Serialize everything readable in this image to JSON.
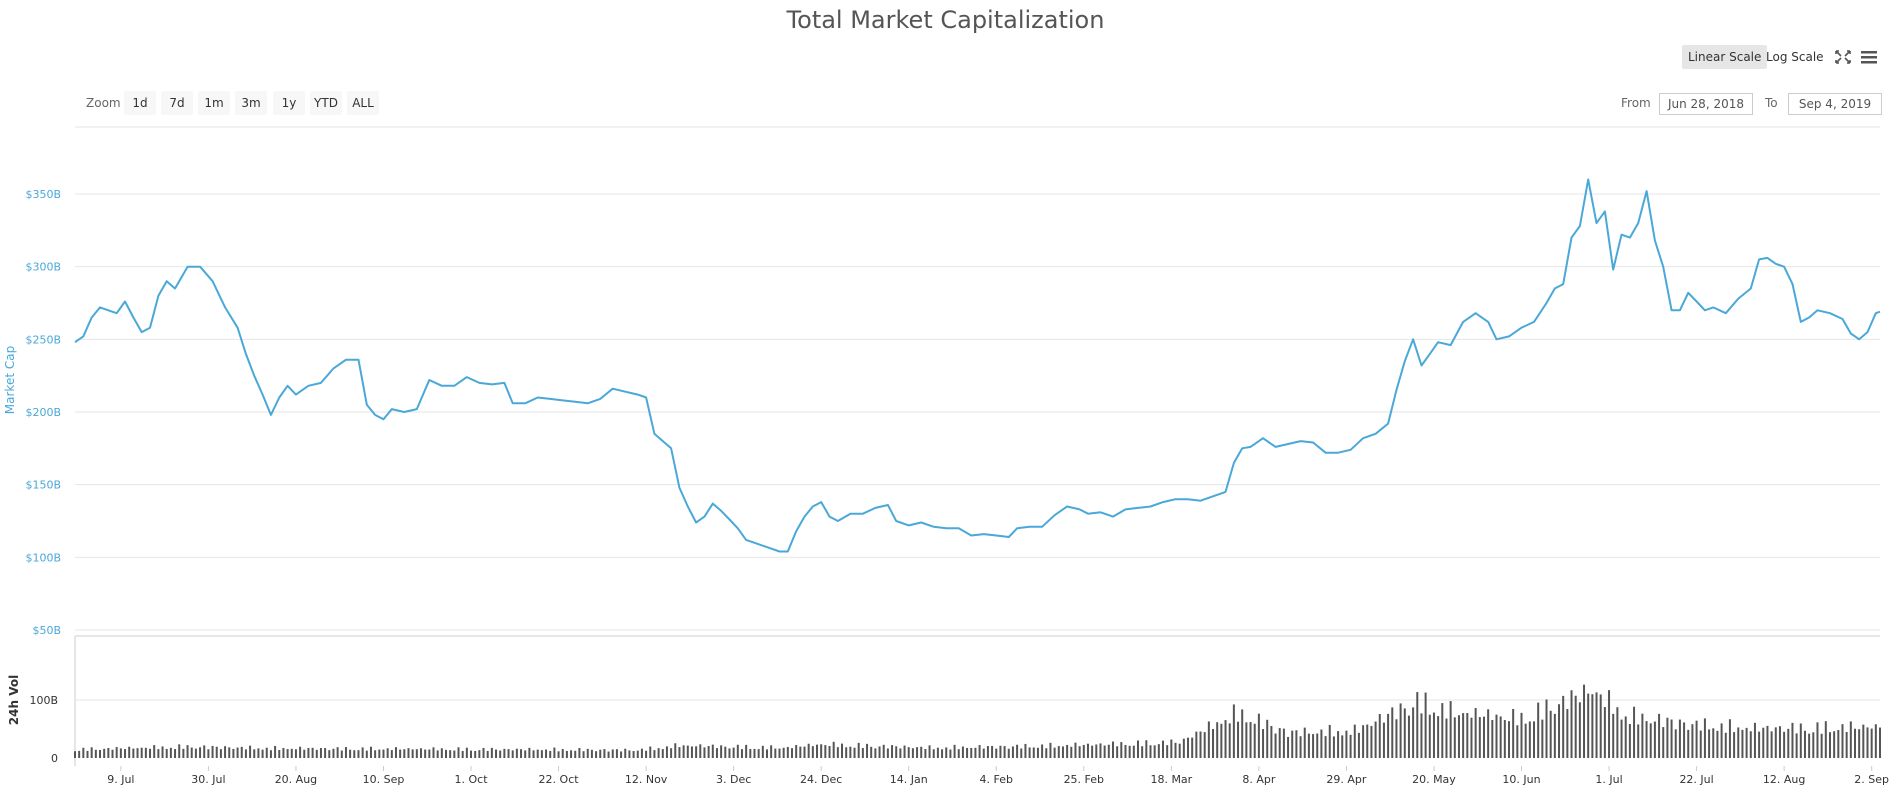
{
  "chart_data": {
    "type": "line",
    "title": "Total Market Capitalization",
    "range_selector": {
      "zoom_label": "Zoom",
      "buttons": [
        "1d",
        "7d",
        "1m",
        "3m",
        "1y",
        "YTD",
        "ALL"
      ],
      "from_label": "From",
      "from_date": "Jun 28, 2018",
      "to_label": "To",
      "to_date": "Sep 4, 2019"
    },
    "scale_buttons": [
      "Linear Scale",
      "Log Scale"
    ],
    "active_scale": "Linear Scale",
    "market_cap_axis": {
      "label": "Market Cap",
      "ticks": [
        {
          "value": 50,
          "label": "$50B"
        },
        {
          "value": 100,
          "label": "$100B"
        },
        {
          "value": 150,
          "label": "$150B"
        },
        {
          "value": 200,
          "label": "$200B"
        },
        {
          "value": 250,
          "label": "$250B"
        },
        {
          "value": 300,
          "label": "$300B"
        },
        {
          "value": 350,
          "label": "$350B"
        }
      ],
      "ylim": [
        50,
        400
      ]
    },
    "volume_axis": {
      "label": "24h Vol",
      "ticks": [
        {
          "value": 0,
          "label": "0"
        },
        {
          "value": 100,
          "label": "100B"
        }
      ],
      "ylim": [
        0,
        200
      ]
    },
    "xlim": [
      "2018-06-28",
      "2019-09-04"
    ],
    "x_ticks": [
      {
        "date": "2018-07-09",
        "label": "9. Jul"
      },
      {
        "date": "2018-07-30",
        "label": "30. Jul"
      },
      {
        "date": "2018-08-20",
        "label": "20. Aug"
      },
      {
        "date": "2018-09-10",
        "label": "10. Sep"
      },
      {
        "date": "2018-10-01",
        "label": "1. Oct"
      },
      {
        "date": "2018-10-22",
        "label": "22. Oct"
      },
      {
        "date": "2018-11-12",
        "label": "12. Nov"
      },
      {
        "date": "2018-12-03",
        "label": "3. Dec"
      },
      {
        "date": "2018-12-24",
        "label": "24. Dec"
      },
      {
        "date": "2019-01-14",
        "label": "14. Jan"
      },
      {
        "date": "2019-02-04",
        "label": "4. Feb"
      },
      {
        "date": "2019-02-25",
        "label": "25. Feb"
      },
      {
        "date": "2019-03-18",
        "label": "18. Mar"
      },
      {
        "date": "2019-04-08",
        "label": "8. Apr"
      },
      {
        "date": "2019-04-29",
        "label": "29. Apr"
      },
      {
        "date": "2019-05-20",
        "label": "20. May"
      },
      {
        "date": "2019-06-10",
        "label": "10. Jun"
      },
      {
        "date": "2019-07-01",
        "label": "1. Jul"
      },
      {
        "date": "2019-07-22",
        "label": "22. Jul"
      },
      {
        "date": "2019-08-12",
        "label": "12. Aug"
      },
      {
        "date": "2019-09-02",
        "label": "2. Sep"
      }
    ],
    "series": [
      {
        "name": "Market Cap",
        "color": "#4aa8d8",
        "points": [
          [
            "2018-06-28",
            248
          ],
          [
            "2018-06-30",
            252
          ],
          [
            "2018-07-02",
            265
          ],
          [
            "2018-07-04",
            272
          ],
          [
            "2018-07-06",
            270
          ],
          [
            "2018-07-08",
            268
          ],
          [
            "2018-07-10",
            276
          ],
          [
            "2018-07-12",
            265
          ],
          [
            "2018-07-14",
            255
          ],
          [
            "2018-07-16",
            258
          ],
          [
            "2018-07-18",
            280
          ],
          [
            "2018-07-20",
            290
          ],
          [
            "2018-07-22",
            285
          ],
          [
            "2018-07-25",
            300
          ],
          [
            "2018-07-28",
            300
          ],
          [
            "2018-07-31",
            290
          ],
          [
            "2018-08-03",
            272
          ],
          [
            "2018-08-06",
            258
          ],
          [
            "2018-08-08",
            240
          ],
          [
            "2018-08-10",
            225
          ],
          [
            "2018-08-12",
            212
          ],
          [
            "2018-08-14",
            198
          ],
          [
            "2018-08-16",
            210
          ],
          [
            "2018-08-18",
            218
          ],
          [
            "2018-08-20",
            212
          ],
          [
            "2018-08-23",
            218
          ],
          [
            "2018-08-26",
            220
          ],
          [
            "2018-08-29",
            230
          ],
          [
            "2018-09-01",
            236
          ],
          [
            "2018-09-04",
            236
          ],
          [
            "2018-09-06",
            205
          ],
          [
            "2018-09-08",
            198
          ],
          [
            "2018-09-10",
            195
          ],
          [
            "2018-09-12",
            202
          ],
          [
            "2018-09-15",
            200
          ],
          [
            "2018-09-18",
            202
          ],
          [
            "2018-09-21",
            222
          ],
          [
            "2018-09-24",
            218
          ],
          [
            "2018-09-27",
            218
          ],
          [
            "2018-09-30",
            224
          ],
          [
            "2018-10-03",
            220
          ],
          [
            "2018-10-06",
            219
          ],
          [
            "2018-10-09",
            220
          ],
          [
            "2018-10-11",
            206
          ],
          [
            "2018-10-14",
            206
          ],
          [
            "2018-10-17",
            210
          ],
          [
            "2018-10-20",
            209
          ],
          [
            "2018-10-23",
            208
          ],
          [
            "2018-10-26",
            207
          ],
          [
            "2018-10-29",
            206
          ],
          [
            "2018-11-01",
            209
          ],
          [
            "2018-11-04",
            216
          ],
          [
            "2018-11-07",
            214
          ],
          [
            "2018-11-10",
            212
          ],
          [
            "2018-11-12",
            210
          ],
          [
            "2018-11-14",
            185
          ],
          [
            "2018-11-16",
            180
          ],
          [
            "2018-11-18",
            175
          ],
          [
            "2018-11-20",
            148
          ],
          [
            "2018-11-22",
            135
          ],
          [
            "2018-11-24",
            124
          ],
          [
            "2018-11-26",
            128
          ],
          [
            "2018-11-28",
            137
          ],
          [
            "2018-11-30",
            132
          ],
          [
            "2018-12-02",
            126
          ],
          [
            "2018-12-04",
            120
          ],
          [
            "2018-12-06",
            112
          ],
          [
            "2018-12-08",
            110
          ],
          [
            "2018-12-10",
            108
          ],
          [
            "2018-12-12",
            106
          ],
          [
            "2018-12-14",
            104
          ],
          [
            "2018-12-16",
            104
          ],
          [
            "2018-12-18",
            118
          ],
          [
            "2018-12-20",
            128
          ],
          [
            "2018-12-22",
            135
          ],
          [
            "2018-12-24",
            138
          ],
          [
            "2018-12-26",
            128
          ],
          [
            "2018-12-28",
            125
          ],
          [
            "2018-12-31",
            130
          ],
          [
            "2019-01-03",
            130
          ],
          [
            "2019-01-06",
            134
          ],
          [
            "2019-01-09",
            136
          ],
          [
            "2019-01-11",
            125
          ],
          [
            "2019-01-14",
            122
          ],
          [
            "2019-01-17",
            124
          ],
          [
            "2019-01-20",
            121
          ],
          [
            "2019-01-23",
            120
          ],
          [
            "2019-01-26",
            120
          ],
          [
            "2019-01-29",
            115
          ],
          [
            "2019-02-01",
            116
          ],
          [
            "2019-02-04",
            115
          ],
          [
            "2019-02-07",
            114
          ],
          [
            "2019-02-09",
            120
          ],
          [
            "2019-02-12",
            121
          ],
          [
            "2019-02-15",
            121
          ],
          [
            "2019-02-18",
            129
          ],
          [
            "2019-02-21",
            135
          ],
          [
            "2019-02-24",
            133
          ],
          [
            "2019-02-26",
            130
          ],
          [
            "2019-03-01",
            131
          ],
          [
            "2019-03-04",
            128
          ],
          [
            "2019-03-07",
            133
          ],
          [
            "2019-03-10",
            134
          ],
          [
            "2019-03-13",
            135
          ],
          [
            "2019-03-16",
            138
          ],
          [
            "2019-03-19",
            140
          ],
          [
            "2019-03-22",
            140
          ],
          [
            "2019-03-25",
            139
          ],
          [
            "2019-03-28",
            142
          ],
          [
            "2019-03-31",
            145
          ],
          [
            "2019-04-02",
            165
          ],
          [
            "2019-04-04",
            175
          ],
          [
            "2019-04-06",
            176
          ],
          [
            "2019-04-09",
            182
          ],
          [
            "2019-04-12",
            176
          ],
          [
            "2019-04-15",
            178
          ],
          [
            "2019-04-18",
            180
          ],
          [
            "2019-04-21",
            179
          ],
          [
            "2019-04-24",
            172
          ],
          [
            "2019-04-27",
            172
          ],
          [
            "2019-04-30",
            174
          ],
          [
            "2019-05-03",
            182
          ],
          [
            "2019-05-06",
            185
          ],
          [
            "2019-05-09",
            192
          ],
          [
            "2019-05-11",
            215
          ],
          [
            "2019-05-13",
            235
          ],
          [
            "2019-05-15",
            250
          ],
          [
            "2019-05-17",
            232
          ],
          [
            "2019-05-19",
            240
          ],
          [
            "2019-05-21",
            248
          ],
          [
            "2019-05-24",
            246
          ],
          [
            "2019-05-27",
            262
          ],
          [
            "2019-05-30",
            268
          ],
          [
            "2019-06-02",
            262
          ],
          [
            "2019-06-04",
            250
          ],
          [
            "2019-06-07",
            252
          ],
          [
            "2019-06-10",
            258
          ],
          [
            "2019-06-13",
            262
          ],
          [
            "2019-06-16",
            275
          ],
          [
            "2019-06-18",
            285
          ],
          [
            "2019-06-20",
            288
          ],
          [
            "2019-06-22",
            320
          ],
          [
            "2019-06-24",
            328
          ],
          [
            "2019-06-26",
            360
          ],
          [
            "2019-06-28",
            330
          ],
          [
            "2019-06-30",
            338
          ],
          [
            "2019-07-02",
            298
          ],
          [
            "2019-07-04",
            322
          ],
          [
            "2019-07-06",
            320
          ],
          [
            "2019-07-08",
            330
          ],
          [
            "2019-07-10",
            352
          ],
          [
            "2019-07-12",
            318
          ],
          [
            "2019-07-14",
            300
          ],
          [
            "2019-07-16",
            270
          ],
          [
            "2019-07-18",
            270
          ],
          [
            "2019-07-20",
            282
          ],
          [
            "2019-07-22",
            276
          ],
          [
            "2019-07-24",
            270
          ],
          [
            "2019-07-26",
            272
          ],
          [
            "2019-07-29",
            268
          ],
          [
            "2019-08-01",
            278
          ],
          [
            "2019-08-04",
            285
          ],
          [
            "2019-08-06",
            305
          ],
          [
            "2019-08-08",
            306
          ],
          [
            "2019-08-10",
            302
          ],
          [
            "2019-08-12",
            300
          ],
          [
            "2019-08-14",
            288
          ],
          [
            "2019-08-16",
            262
          ],
          [
            "2019-08-18",
            265
          ],
          [
            "2019-08-20",
            270
          ],
          [
            "2019-08-23",
            268
          ],
          [
            "2019-08-26",
            264
          ],
          [
            "2019-08-28",
            254
          ],
          [
            "2019-08-30",
            250
          ],
          [
            "2019-09-01",
            255
          ],
          [
            "2019-09-03",
            268
          ],
          [
            "2019-09-04",
            269
          ]
        ]
      },
      {
        "name": "24h Vol",
        "type": "bar",
        "color": "#555555",
        "period": "2018-06-28 to 2019-09-04",
        "anchors": [
          [
            "2018-06-28",
            15
          ],
          [
            "2018-07-25",
            20
          ],
          [
            "2018-08-15",
            17
          ],
          [
            "2018-09-15",
            16
          ],
          [
            "2018-10-15",
            15
          ],
          [
            "2018-11-10",
            14
          ],
          [
            "2018-11-20",
            22
          ],
          [
            "2018-12-15",
            18
          ],
          [
            "2018-12-24",
            24
          ],
          [
            "2019-01-20",
            18
          ],
          [
            "2019-02-20",
            22
          ],
          [
            "2019-03-20",
            28
          ],
          [
            "2019-04-03",
            80
          ],
          [
            "2019-04-15",
            45
          ],
          [
            "2019-05-01",
            48
          ],
          [
            "2019-05-16",
            100
          ],
          [
            "2019-05-25",
            80
          ],
          [
            "2019-06-10",
            70
          ],
          [
            "2019-06-27",
            120
          ],
          [
            "2019-07-05",
            75
          ],
          [
            "2019-07-20",
            60
          ],
          [
            "2019-08-05",
            52
          ],
          [
            "2019-09-04",
            55
          ]
        ]
      }
    ]
  }
}
